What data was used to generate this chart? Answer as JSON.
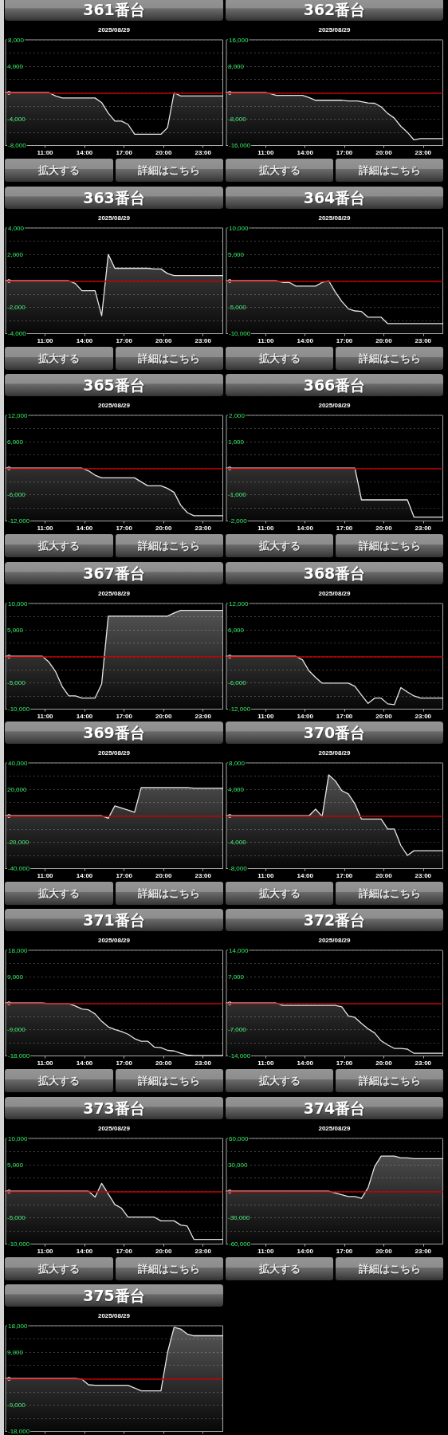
{
  "chart_data": [
    {
      "type": "area",
      "title": "361番台",
      "subtitle": "2025/08/29",
      "x": [
        8,
        11.3,
        11.8,
        12.3,
        14.8,
        15.3,
        15.8,
        16.3,
        16.8,
        17.3,
        17.8,
        19.8,
        20.3,
        20.8,
        21.3,
        24.5
      ],
      "values": [
        0,
        0,
        -500,
        -800,
        -800,
        -1500,
        -3100,
        -4300,
        -4300,
        -4800,
        -6300,
        -6300,
        -5300,
        0,
        -500,
        -500
      ],
      "color": "#e6e6e6",
      "marker": "none",
      "xlim": [
        8,
        24.5
      ],
      "xticks": [
        {
          "value": 11,
          "label": "11:00"
        },
        {
          "value": 14,
          "label": "14:00"
        },
        {
          "value": 17,
          "label": "17:00"
        },
        {
          "value": 20,
          "label": "20:00"
        },
        {
          "value": 23,
          "label": "23:00"
        }
      ],
      "ylim": [
        -8000,
        8000
      ],
      "yticks": [
        {
          "value": -8000,
          "label": "-8,000"
        },
        {
          "value": -6000,
          "label": null
        },
        {
          "value": -4000,
          "label": "-4,000"
        },
        {
          "value": -2000,
          "label": null
        },
        {
          "value": 0,
          "label": "0"
        },
        {
          "value": 2000,
          "label": null
        },
        {
          "value": 4000,
          "label": "4,000"
        },
        {
          "value": 6000,
          "label": null
        },
        {
          "value": 8000,
          "label": "8,000"
        }
      ],
      "grid": "y",
      "ref_lines": [
        {
          "axis": "y",
          "value": 0,
          "color": "#c00000"
        }
      ],
      "annotations": [
        "拡大する",
        "詳細はこちら"
      ]
    },
    {
      "type": "area",
      "title": "362番台",
      "subtitle": "2025/08/29",
      "x": [
        8,
        11.0,
        11.3,
        11.8,
        13.8,
        14.3,
        14.8,
        16.8,
        17.3,
        18.0,
        18.8,
        19.3,
        19.8,
        20.3,
        20.8,
        21.3,
        21.8,
        22.3,
        22.8,
        24.5
      ],
      "values": [
        0,
        0,
        -200,
        -800,
        -800,
        -1500,
        -2300,
        -2300,
        -2500,
        -2500,
        -3100,
        -3200,
        -4300,
        -6300,
        -7700,
        -10200,
        -12000,
        -14300,
        -13900,
        -13900
      ],
      "color": "#e6e6e6",
      "marker": "none",
      "xlim": [
        8,
        24.5
      ],
      "xticks": [
        {
          "value": 11,
          "label": "11:00"
        },
        {
          "value": 14,
          "label": "14:00"
        },
        {
          "value": 17,
          "label": "17:00"
        },
        {
          "value": 20,
          "label": "20:00"
        },
        {
          "value": 23,
          "label": "23:00"
        }
      ],
      "ylim": [
        -16000,
        16000
      ],
      "yticks": [
        {
          "value": -16000,
          "label": "-16,000"
        },
        {
          "value": -12000,
          "label": null
        },
        {
          "value": -8000,
          "label": "-8,000"
        },
        {
          "value": -4000,
          "label": null
        },
        {
          "value": 0,
          "label": "0"
        },
        {
          "value": 4000,
          "label": null
        },
        {
          "value": 8000,
          "label": "8,000"
        },
        {
          "value": 12000,
          "label": null
        },
        {
          "value": 16000,
          "label": "16,000"
        }
      ],
      "grid": "y",
      "ref_lines": [
        {
          "axis": "y",
          "value": 0,
          "color": "#c00000"
        }
      ],
      "annotations": [
        "拡大する",
        "詳細はこちら"
      ]
    },
    {
      "type": "area",
      "title": "363番台",
      "subtitle": "2025/08/29",
      "x": [
        8,
        12.8,
        13.3,
        13.8,
        14.8,
        15.3,
        15.8,
        16.3,
        18.8,
        19.3,
        19.8,
        20.3,
        20.8,
        24.5
      ],
      "values": [
        0,
        0,
        -200,
        -750,
        -750,
        -2650,
        2000,
        950,
        950,
        900,
        900,
        550,
        400,
        400
      ],
      "color": "#e6e6e6",
      "marker": "none",
      "xlim": [
        8,
        24.5
      ],
      "xticks": [
        {
          "value": 11,
          "label": "11:00"
        },
        {
          "value": 14,
          "label": "14:00"
        },
        {
          "value": 17,
          "label": "17:00"
        },
        {
          "value": 20,
          "label": "20:00"
        },
        {
          "value": 23,
          "label": "23:00"
        }
      ],
      "ylim": [
        -4000,
        4000
      ],
      "yticks": [
        {
          "value": -4000,
          "label": "-4,000"
        },
        {
          "value": -3000,
          "label": null
        },
        {
          "value": -2000,
          "label": "-2,000"
        },
        {
          "value": -1000,
          "label": null
        },
        {
          "value": 0,
          "label": "0"
        },
        {
          "value": 1000,
          "label": null
        },
        {
          "value": 2000,
          "label": "2,000"
        },
        {
          "value": 3000,
          "label": null
        },
        {
          "value": 4000,
          "label": "4,000"
        }
      ],
      "grid": "y",
      "ref_lines": [
        {
          "axis": "y",
          "value": 0,
          "color": "#c00000"
        }
      ],
      "annotations": [
        "拡大する",
        "詳細はこちら"
      ]
    },
    {
      "type": "area",
      "title": "364番台",
      "subtitle": "2025/08/29",
      "x": [
        8,
        11.8,
        12.3,
        12.8,
        13.3,
        14.8,
        15.3,
        15.8,
        16.3,
        16.8,
        17.3,
        17.8,
        18.3,
        18.8,
        19.8,
        20.3,
        24.5
      ],
      "values": [
        0,
        0,
        -300,
        -300,
        -1000,
        -1000,
        -300,
        0,
        -2100,
        -3900,
        -5300,
        -5700,
        -5800,
        -6900,
        -6900,
        -8100,
        -8100
      ],
      "color": "#e6e6e6",
      "marker": "none",
      "xlim": [
        8,
        24.5
      ],
      "xticks": [
        {
          "value": 11,
          "label": "11:00"
        },
        {
          "value": 14,
          "label": "14:00"
        },
        {
          "value": 17,
          "label": "17:00"
        },
        {
          "value": 20,
          "label": "20:00"
        },
        {
          "value": 23,
          "label": "23:00"
        }
      ],
      "ylim": [
        -10000,
        10000
      ],
      "yticks": [
        {
          "value": -10000,
          "label": "-10,000"
        },
        {
          "value": -7500,
          "label": null
        },
        {
          "value": -5000,
          "label": "-5,000"
        },
        {
          "value": -2500,
          "label": null
        },
        {
          "value": 0,
          "label": "0"
        },
        {
          "value": 2500,
          "label": null
        },
        {
          "value": 5000,
          "label": "5,000"
        },
        {
          "value": 7500,
          "label": null
        },
        {
          "value": 10000,
          "label": "10,000"
        }
      ],
      "grid": "y",
      "ref_lines": [
        {
          "axis": "y",
          "value": 0,
          "color": "#c00000"
        }
      ],
      "annotations": [
        "拡大する",
        "詳細はこちら"
      ]
    },
    {
      "type": "area",
      "title": "365番台",
      "subtitle": "2025/08/29",
      "x": [
        8,
        13.8,
        14.3,
        14.8,
        15.3,
        17.8,
        18.8,
        19.8,
        20.3,
        20.8,
        21.3,
        21.8,
        22.3,
        24.5
      ],
      "values": [
        0,
        0,
        -600,
        -1600,
        -2200,
        -2200,
        -4000,
        -4000,
        -4600,
        -5500,
        -8400,
        -10100,
        -10800,
        -10800
      ],
      "color": "#e6e6e6",
      "marker": "none",
      "xlim": [
        8,
        24.5
      ],
      "xticks": [
        {
          "value": 11,
          "label": "11:00"
        },
        {
          "value": 14,
          "label": "14:00"
        },
        {
          "value": 17,
          "label": "17:00"
        },
        {
          "value": 20,
          "label": "20:00"
        },
        {
          "value": 23,
          "label": "23:00"
        }
      ],
      "ylim": [
        -12000,
        12000
      ],
      "yticks": [
        {
          "value": -12000,
          "label": "-12,000"
        },
        {
          "value": -9000,
          "label": null
        },
        {
          "value": -6000,
          "label": "-6,000"
        },
        {
          "value": -3000,
          "label": null
        },
        {
          "value": 0,
          "label": "0"
        },
        {
          "value": 3000,
          "label": null
        },
        {
          "value": 6000,
          "label": "6,000"
        },
        {
          "value": 9000,
          "label": null
        },
        {
          "value": 12000,
          "label": "12,000"
        }
      ],
      "grid": "y",
      "ref_lines": [
        {
          "axis": "y",
          "value": 0,
          "color": "#c00000"
        }
      ],
      "annotations": [
        "拡大する",
        "詳細はこちら"
      ]
    },
    {
      "type": "area",
      "title": "366番台",
      "subtitle": "2025/08/29",
      "x": [
        8,
        17.8,
        18.3,
        21.8,
        22.3,
        24.5
      ],
      "values": [
        0,
        0,
        -1200,
        -1200,
        -1850,
        -1850
      ],
      "color": "#e6e6e6",
      "marker": "none",
      "xlim": [
        8,
        24.5
      ],
      "xticks": [
        {
          "value": 11,
          "label": "11:00"
        },
        {
          "value": 14,
          "label": "14:00"
        },
        {
          "value": 17,
          "label": "17:00"
        },
        {
          "value": 20,
          "label": "20:00"
        },
        {
          "value": 23,
          "label": "23:00"
        }
      ],
      "ylim": [
        -2000,
        2000
      ],
      "yticks": [
        {
          "value": -2000,
          "label": "-2,000"
        },
        {
          "value": -1500,
          "label": null
        },
        {
          "value": -1000,
          "label": "-1,000"
        },
        {
          "value": -500,
          "label": null
        },
        {
          "value": 0,
          "label": "0"
        },
        {
          "value": 500,
          "label": null
        },
        {
          "value": 1000,
          "label": "1,000"
        },
        {
          "value": 1500,
          "label": null
        },
        {
          "value": 2000,
          "label": "2,000"
        }
      ],
      "grid": "y",
      "ref_lines": [
        {
          "axis": "y",
          "value": 0,
          "color": "#c00000"
        }
      ],
      "annotations": [
        "拡大する",
        "詳細はこちら"
      ]
    },
    {
      "type": "area",
      "title": "367番台",
      "subtitle": "2025/08/29",
      "x": [
        8,
        10.8,
        11.3,
        11.8,
        12.3,
        12.8,
        13.3,
        13.8,
        14.8,
        15.3,
        15.8,
        20.3,
        20.8,
        21.3,
        24.5
      ],
      "values": [
        0,
        0,
        -1100,
        -2900,
        -5700,
        -7500,
        -7500,
        -7900,
        -7900,
        -5200,
        7600,
        7600,
        8200,
        8700,
        8700
      ],
      "color": "#e6e6e6",
      "marker": "none",
      "xlim": [
        8,
        24.5
      ],
      "xticks": [
        {
          "value": 11,
          "label": "11:00"
        },
        {
          "value": 14,
          "label": "14:00"
        },
        {
          "value": 17,
          "label": "17:00"
        },
        {
          "value": 20,
          "label": "20:00"
        },
        {
          "value": 23,
          "label": "23:00"
        }
      ],
      "ylim": [
        -10000,
        10000
      ],
      "yticks": [
        {
          "value": -10000,
          "label": "-10,000"
        },
        {
          "value": -7500,
          "label": null
        },
        {
          "value": -5000,
          "label": "-5,000"
        },
        {
          "value": -2500,
          "label": null
        },
        {
          "value": 0,
          "label": "0"
        },
        {
          "value": 2500,
          "label": null
        },
        {
          "value": 5000,
          "label": "5,000"
        },
        {
          "value": 7500,
          "label": null
        },
        {
          "value": 10000,
          "label": "10,000"
        }
      ],
      "grid": "y",
      "ref_lines": [
        {
          "axis": "y",
          "value": 0,
          "color": "#c00000"
        }
      ]
    },
    {
      "type": "area",
      "title": "368番台",
      "subtitle": "2025/08/29",
      "x": [
        8,
        13.3,
        13.8,
        14.3,
        14.8,
        15.3,
        17.3,
        17.8,
        18.3,
        18.8,
        19.3,
        19.8,
        20.3,
        20.8,
        21.3,
        21.8,
        22.3,
        22.8,
        24.5
      ],
      "values": [
        0,
        0,
        -800,
        -3300,
        -4800,
        -6100,
        -6100,
        -6800,
        -8800,
        -10700,
        -9500,
        -9500,
        -10800,
        -11000,
        -7100,
        -8100,
        -9000,
        -9500,
        -9500
      ],
      "color": "#e6e6e6",
      "marker": "none",
      "xlim": [
        8,
        24.5
      ],
      "xticks": [
        {
          "value": 11,
          "label": "11:00"
        },
        {
          "value": 14,
          "label": "14:00"
        },
        {
          "value": 17,
          "label": "17:00"
        },
        {
          "value": 20,
          "label": "20:00"
        },
        {
          "value": 23,
          "label": "23:00"
        }
      ],
      "ylim": [
        -12000,
        12000
      ],
      "yticks": [
        {
          "value": -12000,
          "label": "-12,000"
        },
        {
          "value": -9000,
          "label": null
        },
        {
          "value": -6000,
          "label": "-6,000"
        },
        {
          "value": -3000,
          "label": null
        },
        {
          "value": 0,
          "label": "0"
        },
        {
          "value": 3000,
          "label": null
        },
        {
          "value": 6000,
          "label": "6,000"
        },
        {
          "value": 9000,
          "label": null
        },
        {
          "value": 12000,
          "label": "12,000"
        }
      ],
      "grid": "y",
      "ref_lines": [
        {
          "axis": "y",
          "value": 0,
          "color": "#c00000"
        }
      ]
    },
    {
      "type": "area",
      "title": "369番台",
      "subtitle": "2025/08/29",
      "x": [
        8,
        15.3,
        15.8,
        16.3,
        17.8,
        18.3,
        21.8,
        22.3,
        24.5
      ],
      "values": [
        0,
        0,
        -1900,
        7500,
        2700,
        21400,
        21400,
        20900,
        20900
      ],
      "color": "#e6e6e6",
      "marker": "none",
      "xlim": [
        8,
        24.5
      ],
      "xticks": [
        {
          "value": 11,
          "label": "11:00"
        },
        {
          "value": 14,
          "label": "14:00"
        },
        {
          "value": 17,
          "label": "17:00"
        },
        {
          "value": 20,
          "label": "20:00"
        },
        {
          "value": 23,
          "label": "23:00"
        }
      ],
      "ylim": [
        -40000,
        40000
      ],
      "yticks": [
        {
          "value": -40000,
          "label": "-40,000"
        },
        {
          "value": -30000,
          "label": null
        },
        {
          "value": -20000,
          "label": "-20,000"
        },
        {
          "value": -10000,
          "label": null
        },
        {
          "value": 0,
          "label": "0"
        },
        {
          "value": 10000,
          "label": null
        },
        {
          "value": 20000,
          "label": "20,000"
        },
        {
          "value": 30000,
          "label": null
        },
        {
          "value": 40000,
          "label": "40,000"
        }
      ],
      "grid": "y",
      "ref_lines": [
        {
          "axis": "y",
          "value": 0,
          "color": "#c00000"
        }
      ],
      "annotations": [
        "拡大する",
        "詳細はこちら"
      ]
    },
    {
      "type": "area",
      "title": "370番台",
      "subtitle": "2025/08/29",
      "x": [
        8,
        14.3,
        14.8,
        15.3,
        15.8,
        16.3,
        16.8,
        17.3,
        17.8,
        18.3,
        19.8,
        20.3,
        20.8,
        21.3,
        21.8,
        22.3,
        24.5
      ],
      "values": [
        0,
        0,
        1000,
        -100,
        6200,
        5300,
        3800,
        3300,
        1800,
        -500,
        -500,
        -2000,
        -2000,
        -4500,
        -6000,
        -5300,
        -5300
      ],
      "color": "#e6e6e6",
      "marker": "none",
      "xlim": [
        8,
        24.5
      ],
      "xticks": [
        {
          "value": 11,
          "label": "11:00"
        },
        {
          "value": 14,
          "label": "14:00"
        },
        {
          "value": 17,
          "label": "17:00"
        },
        {
          "value": 20,
          "label": "20:00"
        },
        {
          "value": 23,
          "label": "23:00"
        }
      ],
      "ylim": [
        -8000,
        8000
      ],
      "yticks": [
        {
          "value": -8000,
          "label": "-8,000"
        },
        {
          "value": -6000,
          "label": null
        },
        {
          "value": -4000,
          "label": "-4,000"
        },
        {
          "value": -2000,
          "label": null
        },
        {
          "value": 0,
          "label": "0"
        },
        {
          "value": 2000,
          "label": null
        },
        {
          "value": 4000,
          "label": "4,000"
        },
        {
          "value": 6000,
          "label": null
        },
        {
          "value": 8000,
          "label": "8,000"
        }
      ],
      "grid": "y",
      "ref_lines": [
        {
          "axis": "y",
          "value": 0,
          "color": "#c00000"
        }
      ],
      "annotations": [
        "拡大する",
        "詳細はこちら"
      ]
    },
    {
      "type": "area",
      "title": "371番台",
      "subtitle": "2025/08/29",
      "x": [
        8,
        10.8,
        11.3,
        12.8,
        13.3,
        13.8,
        14.3,
        14.8,
        15.3,
        15.8,
        16.3,
        16.8,
        17.3,
        17.8,
        18.3,
        18.8,
        19.3,
        19.8,
        20.3,
        20.8,
        21.3,
        21.8,
        22.3,
        24.5
      ],
      "values": [
        0,
        0,
        -200,
        -200,
        -1000,
        -2000,
        -2300,
        -3700,
        -6200,
        -8100,
        -9000,
        -9700,
        -10600,
        -12100,
        -13000,
        -13000,
        -15000,
        -15200,
        -16100,
        -16300,
        -17100,
        -17700,
        -17900,
        -17900
      ],
      "color": "#e6e6e6",
      "marker": "none",
      "xlim": [
        8,
        24.5
      ],
      "xticks": [
        {
          "value": 11,
          "label": "11:00"
        },
        {
          "value": 14,
          "label": "14:00"
        },
        {
          "value": 17,
          "label": "17:00"
        },
        {
          "value": 20,
          "label": "20:00"
        },
        {
          "value": 23,
          "label": "23:00"
        }
      ],
      "ylim": [
        -18000,
        18000
      ],
      "yticks": [
        {
          "value": -18000,
          "label": "-18,000"
        },
        {
          "value": -13500,
          "label": null
        },
        {
          "value": -9000,
          "label": "-9,000"
        },
        {
          "value": -4500,
          "label": null
        },
        {
          "value": 0,
          "label": "0"
        },
        {
          "value": 4500,
          "label": null
        },
        {
          "value": 9000,
          "label": "9,000"
        },
        {
          "value": 13500,
          "label": null
        },
        {
          "value": 18000,
          "label": "18,000"
        }
      ],
      "grid": "y",
      "ref_lines": [
        {
          "axis": "y",
          "value": 0,
          "color": "#c00000"
        }
      ],
      "annotations": [
        "拡大する",
        "詳細はこちら"
      ]
    },
    {
      "type": "area",
      "title": "372番台",
      "subtitle": "2025/08/29",
      "x": [
        8,
        11.8,
        12.3,
        16.3,
        16.8,
        17.3,
        17.8,
        18.3,
        18.8,
        19.3,
        19.8,
        20.3,
        20.8,
        21.3,
        21.8,
        22.3,
        24.5
      ],
      "values": [
        0,
        0,
        -600,
        -600,
        -1000,
        -3400,
        -3800,
        -5400,
        -6800,
        -7900,
        -10000,
        -11100,
        -12000,
        -12000,
        -12200,
        -13300,
        -13300
      ],
      "color": "#e6e6e6",
      "marker": "none",
      "xlim": [
        8,
        24.5
      ],
      "xticks": [
        {
          "value": 11,
          "label": "11:00"
        },
        {
          "value": 14,
          "label": "14:00"
        },
        {
          "value": 17,
          "label": "17:00"
        },
        {
          "value": 20,
          "label": "20:00"
        },
        {
          "value": 23,
          "label": "23:00"
        }
      ],
      "ylim": [
        -14000,
        14000
      ],
      "yticks": [
        {
          "value": -14000,
          "label": "-14,000"
        },
        {
          "value": -10500,
          "label": null
        },
        {
          "value": -7000,
          "label": "-7,000"
        },
        {
          "value": -3500,
          "label": null
        },
        {
          "value": 0,
          "label": "0"
        },
        {
          "value": 3500,
          "label": null
        },
        {
          "value": 7000,
          "label": "7,000"
        },
        {
          "value": 10500,
          "label": null
        },
        {
          "value": 14000,
          "label": "14,000"
        }
      ],
      "grid": "y",
      "ref_lines": [
        {
          "axis": "y",
          "value": 0,
          "color": "#c00000"
        }
      ],
      "annotations": [
        "拡大する",
        "詳細はこちら"
      ]
    },
    {
      "type": "area",
      "title": "373番台",
      "subtitle": "2025/08/29",
      "x": [
        8,
        14.3,
        14.8,
        15.3,
        16.3,
        16.8,
        17.3,
        19.3,
        19.8,
        20.8,
        21.3,
        21.8,
        22.3,
        24.5
      ],
      "values": [
        0,
        0,
        -1100,
        1500,
        -2500,
        -3200,
        -4900,
        -4900,
        -5600,
        -5600,
        -6400,
        -6600,
        -9100,
        -9100
      ],
      "color": "#e6e6e6",
      "marker": "none",
      "xlim": [
        8,
        24.5
      ],
      "xticks": [
        {
          "value": 11,
          "label": "11:00"
        },
        {
          "value": 14,
          "label": "14:00"
        },
        {
          "value": 17,
          "label": "17:00"
        },
        {
          "value": 20,
          "label": "20:00"
        },
        {
          "value": 23,
          "label": "23:00"
        }
      ],
      "ylim": [
        -10000,
        10000
      ],
      "yticks": [
        {
          "value": -10000,
          "label": "-10,000"
        },
        {
          "value": -7500,
          "label": null
        },
        {
          "value": -5000,
          "label": "-5,000"
        },
        {
          "value": -2500,
          "label": null
        },
        {
          "value": 0,
          "label": "0"
        },
        {
          "value": 2500,
          "label": null
        },
        {
          "value": 5000,
          "label": "5,000"
        },
        {
          "value": 7500,
          "label": null
        },
        {
          "value": 10000,
          "label": "10,000"
        }
      ],
      "grid": "y",
      "ref_lines": [
        {
          "axis": "y",
          "value": 0,
          "color": "#c00000"
        }
      ],
      "annotations": [
        "拡大する",
        "詳細はこちら"
      ]
    },
    {
      "type": "area",
      "title": "374番台",
      "subtitle": "2025/08/29",
      "x": [
        8,
        15.8,
        16.3,
        16.8,
        17.3,
        17.8,
        18.3,
        18.8,
        19.3,
        19.8,
        20.3,
        20.8,
        21.3,
        21.8,
        22.3,
        24.5
      ],
      "values": [
        0,
        0,
        -2000,
        -4000,
        -6000,
        -6000,
        -8000,
        4000,
        28000,
        40000,
        40000,
        40000,
        38000,
        38000,
        37000,
        37000
      ],
      "color": "#e6e6e6",
      "marker": "none",
      "xlim": [
        8,
        24.5
      ],
      "xticks": [
        {
          "value": 11,
          "label": "11:00"
        },
        {
          "value": 14,
          "label": "14:00"
        },
        {
          "value": 17,
          "label": "17:00"
        },
        {
          "value": 20,
          "label": "20:00"
        },
        {
          "value": 23,
          "label": "23:00"
        }
      ],
      "ylim": [
        -60000,
        60000
      ],
      "yticks": [
        {
          "value": -60000,
          "label": "-60,000"
        },
        {
          "value": -45000,
          "label": null
        },
        {
          "value": -30000,
          "label": "-30,000"
        },
        {
          "value": -15000,
          "label": null
        },
        {
          "value": 0,
          "label": "0"
        },
        {
          "value": 15000,
          "label": null
        },
        {
          "value": 30000,
          "label": "30,000"
        },
        {
          "value": 45000,
          "label": null
        },
        {
          "value": 60000,
          "label": "60,000"
        }
      ],
      "grid": "y",
      "ref_lines": [
        {
          "axis": "y",
          "value": 0,
          "color": "#c00000"
        }
      ],
      "annotations": [
        "拡大する",
        "詳細はこちら"
      ]
    },
    {
      "type": "area",
      "title": "375番台",
      "subtitle": "2025/08/29",
      "x": [
        8,
        13.3,
        13.8,
        14.3,
        14.8,
        17.3,
        17.8,
        18.3,
        19.8,
        20.3,
        20.8,
        21.3,
        21.8,
        22.3,
        24.5
      ],
      "values": [
        0,
        0,
        -200,
        -2100,
        -2300,
        -2300,
        -3200,
        -4200,
        -4200,
        8900,
        17500,
        16900,
        15200,
        14600,
        14600
      ],
      "color": "#e6e6e6",
      "marker": "none",
      "xlim": [
        8,
        24.5
      ],
      "xticks": [
        {
          "value": 11,
          "label": null
        },
        {
          "value": 14,
          "label": null
        },
        {
          "value": 17,
          "label": null
        },
        {
          "value": 20,
          "label": null
        },
        {
          "value": 23,
          "label": null
        }
      ],
      "ylim": [
        -18000,
        18000
      ],
      "yticks": [
        {
          "value": -18000,
          "label": "-18,000"
        },
        {
          "value": -13500,
          "label": null
        },
        {
          "value": -9000,
          "label": "-9,000"
        },
        {
          "value": -4500,
          "label": null
        },
        {
          "value": 0,
          "label": "0"
        },
        {
          "value": 4500,
          "label": null
        },
        {
          "value": 9000,
          "label": "9,000"
        },
        {
          "value": 13500,
          "label": null
        },
        {
          "value": 18000,
          "label": "18,000"
        }
      ],
      "grid": "y",
      "tick_labels": "y",
      "ref_lines": [
        {
          "axis": "y",
          "value": 0,
          "color": "#c00000"
        }
      ]
    }
  ]
}
